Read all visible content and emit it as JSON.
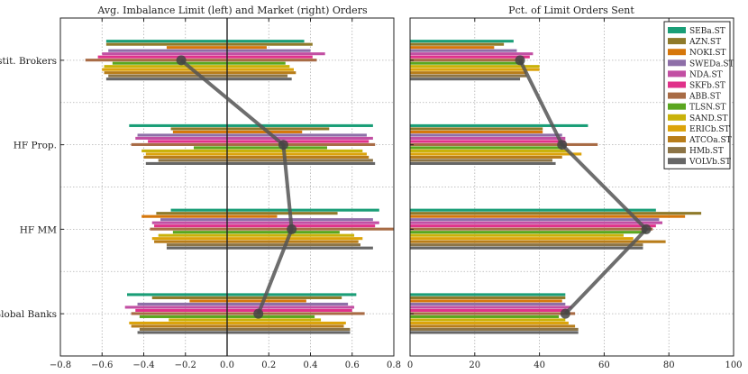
{
  "chart_data": [
    {
      "type": "bar",
      "orientation": "horizontal",
      "title": "Avg. Imbalance Limit (left) and Market (right) Orders",
      "xlim": [
        -0.8,
        0.8
      ],
      "xticks": [
        "−0.8",
        "−0.6",
        "−0.4",
        "−0.2",
        "0.0",
        "0.2",
        "0.4",
        "0.6",
        "0.8"
      ],
      "categories": [
        "Instit. Brokers",
        "HF Prop.",
        "HF MM",
        "Global Banks"
      ],
      "grid": true,
      "series": [
        {
          "name": "SEBa.ST",
          "limit": [
            -0.58,
            -0.47,
            -0.27,
            -0.48
          ],
          "market": [
            0.37,
            0.7,
            0.73,
            0.62
          ]
        },
        {
          "name": "AZN.ST",
          "limit": [
            -0.58,
            -0.27,
            -0.34,
            -0.36
          ],
          "market": [
            0.41,
            0.49,
            0.53,
            0.55
          ]
        },
        {
          "name": "NOKI.ST",
          "limit": [
            -0.29,
            -0.26,
            -0.41,
            -0.18
          ],
          "market": [
            0.19,
            0.36,
            0.24,
            0.38
          ]
        },
        {
          "name": "SWEDa.ST",
          "limit": [
            -0.57,
            -0.43,
            -0.32,
            -0.43
          ],
          "market": [
            0.4,
            0.67,
            0.7,
            0.58
          ]
        },
        {
          "name": "NDA.ST",
          "limit": [
            -0.6,
            -0.44,
            -0.36,
            -0.49
          ],
          "market": [
            0.47,
            0.7,
            0.73,
            0.61
          ]
        },
        {
          "name": "SKFb.ST",
          "limit": [
            -0.62,
            -0.38,
            -0.35,
            -0.44
          ],
          "market": [
            0.41,
            0.68,
            0.71,
            0.6
          ]
        },
        {
          "name": "ABB.ST",
          "limit": [
            -0.68,
            -0.46,
            -0.37,
            -0.46
          ],
          "market": [
            0.43,
            0.71,
            0.8,
            0.66
          ]
        },
        {
          "name": "TLSN.ST",
          "limit": [
            -0.55,
            -0.16,
            -0.26,
            -0.42
          ],
          "market": [
            0.28,
            0.48,
            0.54,
            0.42
          ]
        },
        {
          "name": "SAND.ST",
          "limit": [
            -0.59,
            -0.41,
            -0.33,
            -0.28
          ],
          "market": [
            0.3,
            0.65,
            0.61,
            0.45
          ]
        },
        {
          "name": "ERICb.ST",
          "limit": [
            -0.6,
            -0.39,
            -0.36,
            -0.47
          ],
          "market": [
            0.32,
            0.67,
            0.65,
            0.57
          ]
        },
        {
          "name": "ATCOa.ST",
          "limit": [
            -0.59,
            -0.4,
            -0.35,
            -0.46
          ],
          "market": [
            0.33,
            0.68,
            0.63,
            0.56
          ]
        },
        {
          "name": "HMb.ST",
          "limit": [
            -0.57,
            -0.33,
            -0.29,
            -0.42
          ],
          "market": [
            0.29,
            0.7,
            0.64,
            0.59
          ]
        },
        {
          "name": "VOLVb.ST",
          "limit": [
            -0.58,
            -0.39,
            -0.29,
            -0.43
          ],
          "market": [
            0.31,
            0.71,
            0.7,
            0.59
          ]
        }
      ],
      "average_line": {
        "values": [
          -0.22,
          0.27,
          0.31,
          0.15
        ],
        "color": "#555555"
      }
    },
    {
      "type": "bar",
      "orientation": "horizontal",
      "title": "Pct. of Limit Orders Sent",
      "xlim": [
        0,
        100
      ],
      "xticks": [
        "0",
        "20",
        "40",
        "60",
        "80",
        "100"
      ],
      "categories": [
        "Instit. Brokers",
        "HF Prop.",
        "HF MM",
        "Global Banks"
      ],
      "grid": true,
      "legend": "top-right",
      "series": [
        {
          "name": "SEBa.ST",
          "values": [
            32,
            55,
            76,
            48
          ]
        },
        {
          "name": "AZN.ST",
          "values": [
            29,
            41,
            90,
            48
          ]
        },
        {
          "name": "NOKI.ST",
          "values": [
            26,
            41,
            85,
            47
          ]
        },
        {
          "name": "SWEDa.ST",
          "values": [
            33,
            47,
            77,
            48
          ]
        },
        {
          "name": "NDA.ST",
          "values": [
            38,
            48,
            78,
            50
          ]
        },
        {
          "name": "SKFb.ST",
          "values": [
            37,
            48,
            76,
            49
          ]
        },
        {
          "name": "ABB.ST",
          "values": [
            35,
            58,
            75,
            51
          ]
        },
        {
          "name": "TLSN.ST",
          "values": [
            35,
            47,
            73,
            46
          ]
        },
        {
          "name": "SAND.ST",
          "values": [
            40,
            49,
            66,
            48
          ]
        },
        {
          "name": "ERICb.ST",
          "values": [
            40,
            53,
            69,
            49
          ]
        },
        {
          "name": "ATCOa.ST",
          "values": [
            36,
            47,
            79,
            51
          ]
        },
        {
          "name": "HMb.ST",
          "values": [
            36,
            44,
            72,
            52
          ]
        },
        {
          "name": "VOLVb.ST",
          "values": [
            34,
            45,
            72,
            52
          ]
        }
      ],
      "average_line": {
        "values": [
          34,
          47,
          73,
          48
        ],
        "color": "#555555"
      }
    }
  ],
  "colors": [
    "#1a9e77",
    "#8f7a2a",
    "#d6770b",
    "#8e6fa8",
    "#c24fa3",
    "#e0318a",
    "#a86b45",
    "#5aa61f",
    "#c9b20a",
    "#dca30a",
    "#b87d1a",
    "#8c7446",
    "#666666"
  ]
}
